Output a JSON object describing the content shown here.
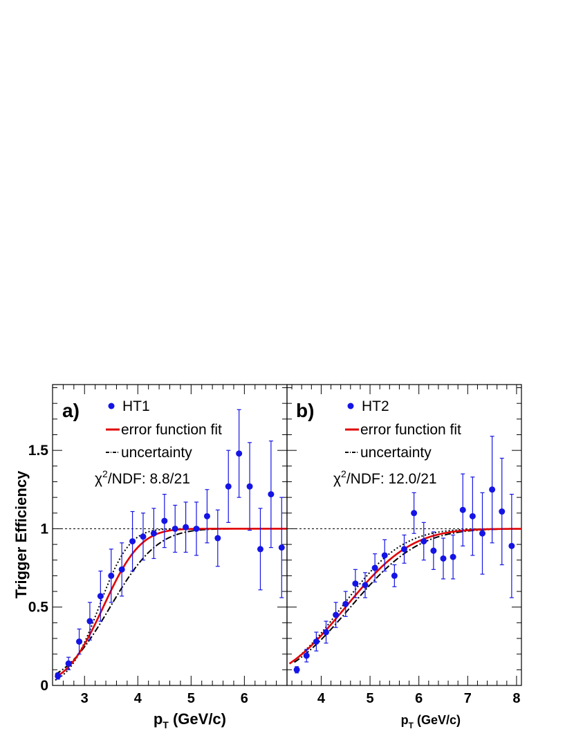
{
  "ylabel": "Trigger Efficiency",
  "chart_data": [
    {
      "type": "scatter",
      "panel_label": "a)",
      "xlabel_main": "p",
      "xlabel_sub": "T",
      "xlabel_rest": " (GeV/c)",
      "ylabel": "Trigger Efficiency",
      "xlim": [
        2.4,
        6.8
      ],
      "ylim": [
        0,
        1.92
      ],
      "xticks": [
        3,
        4,
        5,
        6
      ],
      "yticks": [
        0,
        0.5,
        1,
        1.5
      ],
      "ytick_labels": [
        "0",
        "0.5",
        "1",
        "1.5"
      ],
      "reference_line": 1,
      "legend": {
        "points": "HT1",
        "fit": "error function fit",
        "unc": "uncertainty",
        "chi2_prefix": "χ",
        "chi2_sup": "2",
        "chi2_rest": "/NDF: 8.8/21"
      },
      "series": [
        {
          "name": "HT1",
          "kind": "points",
          "color": "#1414e6",
          "x": [
            2.5,
            2.7,
            2.9,
            3.1,
            3.3,
            3.5,
            3.7,
            3.9,
            4.1,
            4.3,
            4.5,
            4.7,
            4.9,
            5.1,
            5.3,
            5.5,
            5.7,
            5.9,
            6.1,
            6.3,
            6.5,
            6.7
          ],
          "y": [
            0.06,
            0.14,
            0.28,
            0.41,
            0.57,
            0.7,
            0.74,
            0.92,
            0.95,
            0.97,
            1.05,
            1.0,
            1.01,
            1.0,
            1.08,
            0.94,
            1.27,
            1.48,
            1.27,
            0.87,
            1.22,
            0.88
          ],
          "yerr": [
            0.02,
            0.04,
            0.08,
            0.12,
            0.16,
            0.17,
            0.17,
            0.19,
            0.15,
            0.16,
            0.17,
            0.15,
            0.16,
            0.17,
            0.17,
            0.18,
            0.23,
            0.28,
            0.28,
            0.26,
            0.34,
            0.32
          ]
        },
        {
          "name": "error function fit",
          "kind": "erf",
          "color": "#e00000",
          "mu": 3.35,
          "sigma": 0.55
        },
        {
          "name": "uncertainty",
          "kind": "erf_band",
          "color": "#000000",
          "lower": {
            "mu": 3.48,
            "sigma": 0.7
          },
          "upper": {
            "mu": 3.27,
            "sigma": 0.45
          }
        }
      ]
    },
    {
      "type": "scatter",
      "panel_label": "b)",
      "xlabel_main": "p",
      "xlabel_sub": "T",
      "xlabel_rest": " (GeV/c)",
      "xlim": [
        3.3,
        8.1
      ],
      "ylim": [
        0,
        1.92
      ],
      "xticks": [
        4,
        5,
        6,
        7,
        8
      ],
      "yticks": [
        0,
        0.5,
        1,
        1.5
      ],
      "reference_line": 1,
      "legend": {
        "points": "HT2",
        "fit": "error function fit",
        "unc": "uncertainty",
        "chi2_prefix": "χ",
        "chi2_sup": "2",
        "chi2_rest": "/NDF: 12.0/21"
      },
      "series": [
        {
          "name": "HT2",
          "kind": "points",
          "color": "#1414e6",
          "x": [
            3.5,
            3.7,
            3.9,
            4.1,
            4.3,
            4.5,
            4.7,
            4.9,
            5.1,
            5.3,
            5.5,
            5.7,
            5.9,
            6.1,
            6.3,
            6.5,
            6.7,
            6.9,
            7.1,
            7.3,
            7.5,
            7.7,
            7.9
          ],
          "y": [
            0.1,
            0.19,
            0.28,
            0.34,
            0.45,
            0.52,
            0.65,
            0.64,
            0.75,
            0.83,
            0.7,
            0.87,
            1.1,
            0.92,
            0.86,
            0.81,
            0.82,
            1.12,
            1.08,
            0.97,
            1.25,
            1.11,
            0.89
          ],
          "yerr": [
            0.02,
            0.04,
            0.06,
            0.07,
            0.08,
            0.08,
            0.09,
            0.08,
            0.09,
            0.1,
            0.07,
            0.09,
            0.13,
            0.12,
            0.12,
            0.13,
            0.14,
            0.23,
            0.25,
            0.26,
            0.34,
            0.34,
            0.33
          ]
        },
        {
          "name": "error function fit",
          "kind": "erf",
          "color": "#e00000",
          "mu": 4.5,
          "sigma": 1.06
        },
        {
          "name": "uncertainty",
          "kind": "erf_band",
          "color": "#000000",
          "lower": {
            "mu": 4.6,
            "sigma": 1.1
          },
          "upper": {
            "mu": 4.42,
            "sigma": 0.98
          }
        }
      ]
    }
  ]
}
